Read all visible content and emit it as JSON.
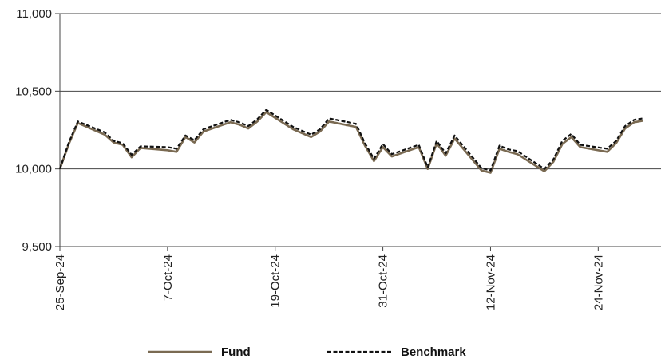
{
  "chart_data": {
    "type": "line",
    "title": "",
    "xlabel": "",
    "ylabel": "",
    "ylim": [
      9500,
      11000
    ],
    "yticks": [
      9500,
      10000,
      10500,
      11000
    ],
    "ytick_labels": [
      "9,500",
      "10,000",
      "10,500",
      "11,000"
    ],
    "xlim": [
      "2024-09-25",
      "2024-12-01"
    ],
    "xtick_labels": [
      {
        "date": "2024-09-25",
        "label": "25-Sep-24"
      },
      {
        "date": "2024-10-07",
        "label": "7-Oct-24"
      },
      {
        "date": "2024-10-19",
        "label": "19-Oct-24"
      },
      {
        "date": "2024-10-31",
        "label": "31-Oct-24"
      },
      {
        "date": "2024-11-12",
        "label": "12-Nov-24"
      },
      {
        "date": "2024-11-24",
        "label": "24-Nov-24"
      }
    ],
    "grid": "horizontal",
    "legend_position": "bottom-center",
    "x": [
      "2024-09-25",
      "2024-09-26",
      "2024-09-27",
      "2024-09-30",
      "2024-10-01",
      "2024-10-02",
      "2024-10-03",
      "2024-10-04",
      "2024-10-07",
      "2024-10-08",
      "2024-10-09",
      "2024-10-10",
      "2024-10-11",
      "2024-10-14",
      "2024-10-15",
      "2024-10-16",
      "2024-10-17",
      "2024-10-18",
      "2024-10-21",
      "2024-10-22",
      "2024-10-23",
      "2024-10-24",
      "2024-10-25",
      "2024-10-28",
      "2024-10-29",
      "2024-10-30",
      "2024-10-31",
      "2024-11-01",
      "2024-11-04",
      "2024-11-05",
      "2024-11-06",
      "2024-11-07",
      "2024-11-08",
      "2024-11-11",
      "2024-11-12",
      "2024-11-13",
      "2024-11-14",
      "2024-11-15",
      "2024-11-18",
      "2024-11-19",
      "2024-11-20",
      "2024-11-21",
      "2024-11-22",
      "2024-11-25",
      "2024-11-26",
      "2024-11-27",
      "2024-11-28",
      "2024-11-29"
    ],
    "series": [
      {
        "name": "Fund",
        "color": "#7a6a52",
        "style": "solid",
        "values": [
          10000,
          10160,
          10295,
          10220,
          10170,
          10155,
          10075,
          10135,
          10120,
          10110,
          10205,
          10170,
          10240,
          10300,
          10285,
          10260,
          10305,
          10365,
          10255,
          10230,
          10205,
          10240,
          10305,
          10270,
          10150,
          10050,
          10140,
          10080,
          10140,
          10000,
          10165,
          10085,
          10195,
          9990,
          9975,
          10130,
          10110,
          10095,
          9985,
          10045,
          10160,
          10205,
          10140,
          10110,
          10165,
          10260,
          10300,
          10310
        ]
      },
      {
        "name": "Benchmark",
        "color": "#111111",
        "style": "dashed",
        "values": [
          10000,
          10170,
          10305,
          10235,
          10180,
          10165,
          10090,
          10145,
          10140,
          10130,
          10215,
          10185,
          10255,
          10315,
          10300,
          10275,
          10320,
          10380,
          10270,
          10245,
          10220,
          10255,
          10325,
          10290,
          10165,
          10065,
          10160,
          10095,
          10155,
          10010,
          10180,
          10100,
          10215,
          10005,
          9990,
          10150,
          10125,
          10115,
          10000,
          10060,
          10180,
          10225,
          10155,
          10130,
          10180,
          10275,
          10315,
          10325
        ]
      }
    ]
  }
}
